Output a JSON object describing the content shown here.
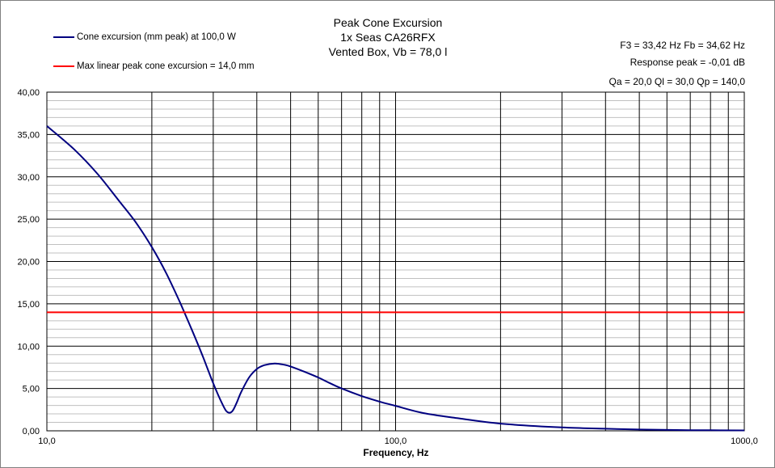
{
  "chart_data": {
    "type": "line",
    "title": [
      "Peak Cone Excursion",
      "1x Seas CA26RFX",
      "Vented Box, Vb = 78,0 l"
    ],
    "xlabel": "Frequency, Hz",
    "ylabel": "",
    "xscale": "log",
    "xlim": [
      10,
      1000
    ],
    "ylim": [
      0,
      40
    ],
    "x_ticks": [
      10,
      100,
      1000
    ],
    "x_tick_labels": [
      "10,0",
      "100,0",
      "1000,0"
    ],
    "y_ticks": [
      0,
      5,
      10,
      15,
      20,
      25,
      30,
      35,
      40
    ],
    "y_tick_labels": [
      "0,00",
      "5,00",
      "10,00",
      "15,00",
      "20,00",
      "25,00",
      "30,00",
      "35,00",
      "40,00"
    ],
    "grid": true,
    "legend_position": "top-left",
    "info_text": [
      "F3 = 33,42 Hz  Fb = 34,62 Hz",
      "Response peak = -0,01 dB",
      "Qa = 20,0  Ql = 30,0  Qp = 140,0"
    ],
    "series": [
      {
        "name": "Cone excursion (mm peak) at 100,0 W",
        "color": "#000080",
        "x": [
          10,
          12,
          14,
          16,
          18,
          20,
          22,
          24,
          26,
          28,
          30,
          32,
          33,
          34,
          35,
          36,
          38,
          40,
          42,
          45,
          48,
          50,
          55,
          60,
          65,
          70,
          80,
          90,
          100,
          120,
          150,
          200,
          300,
          400,
          500,
          700,
          1000
        ],
        "values": [
          36.0,
          33.2,
          30.3,
          27.3,
          24.6,
          21.7,
          18.6,
          15.3,
          12.0,
          8.8,
          5.6,
          3.0,
          2.2,
          2.3,
          3.3,
          4.5,
          6.3,
          7.3,
          7.75,
          7.95,
          7.8,
          7.6,
          6.95,
          6.3,
          5.6,
          5.0,
          4.1,
          3.45,
          2.95,
          2.1,
          1.5,
          0.85,
          0.4,
          0.25,
          0.15,
          0.08,
          0.05
        ]
      },
      {
        "name": "Max linear peak cone excursion = 14,0 mm",
        "color": "#ff0000",
        "x": [
          10,
          1000
        ],
        "values": [
          14,
          14
        ]
      }
    ]
  }
}
